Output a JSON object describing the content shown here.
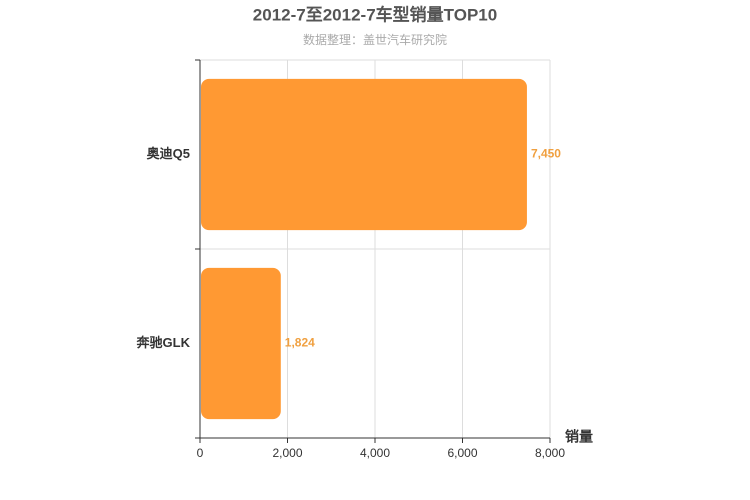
{
  "chart_data": {
    "type": "bar",
    "orientation": "horizontal",
    "title": "2012-7至2012-7车型销量TOP10",
    "subtitle": "数据整理：盖世汽车研究院",
    "x_label": "销量",
    "categories": [
      "奥迪Q5",
      "奔驰GLK"
    ],
    "values": [
      7450,
      1824
    ],
    "value_labels": [
      "7,450",
      "1,824"
    ],
    "color": "#ff9933",
    "xlim": [
      0,
      8000
    ],
    "xticks": [
      0,
      {
        "value": 2000,
        "label": "2,000"
      },
      {
        "value": 4000,
        "label": "4,000"
      },
      {
        "value": 6000,
        "label": "6,000"
      },
      {
        "value": 8000,
        "label": "8,000"
      }
    ],
    "grid": true
  }
}
